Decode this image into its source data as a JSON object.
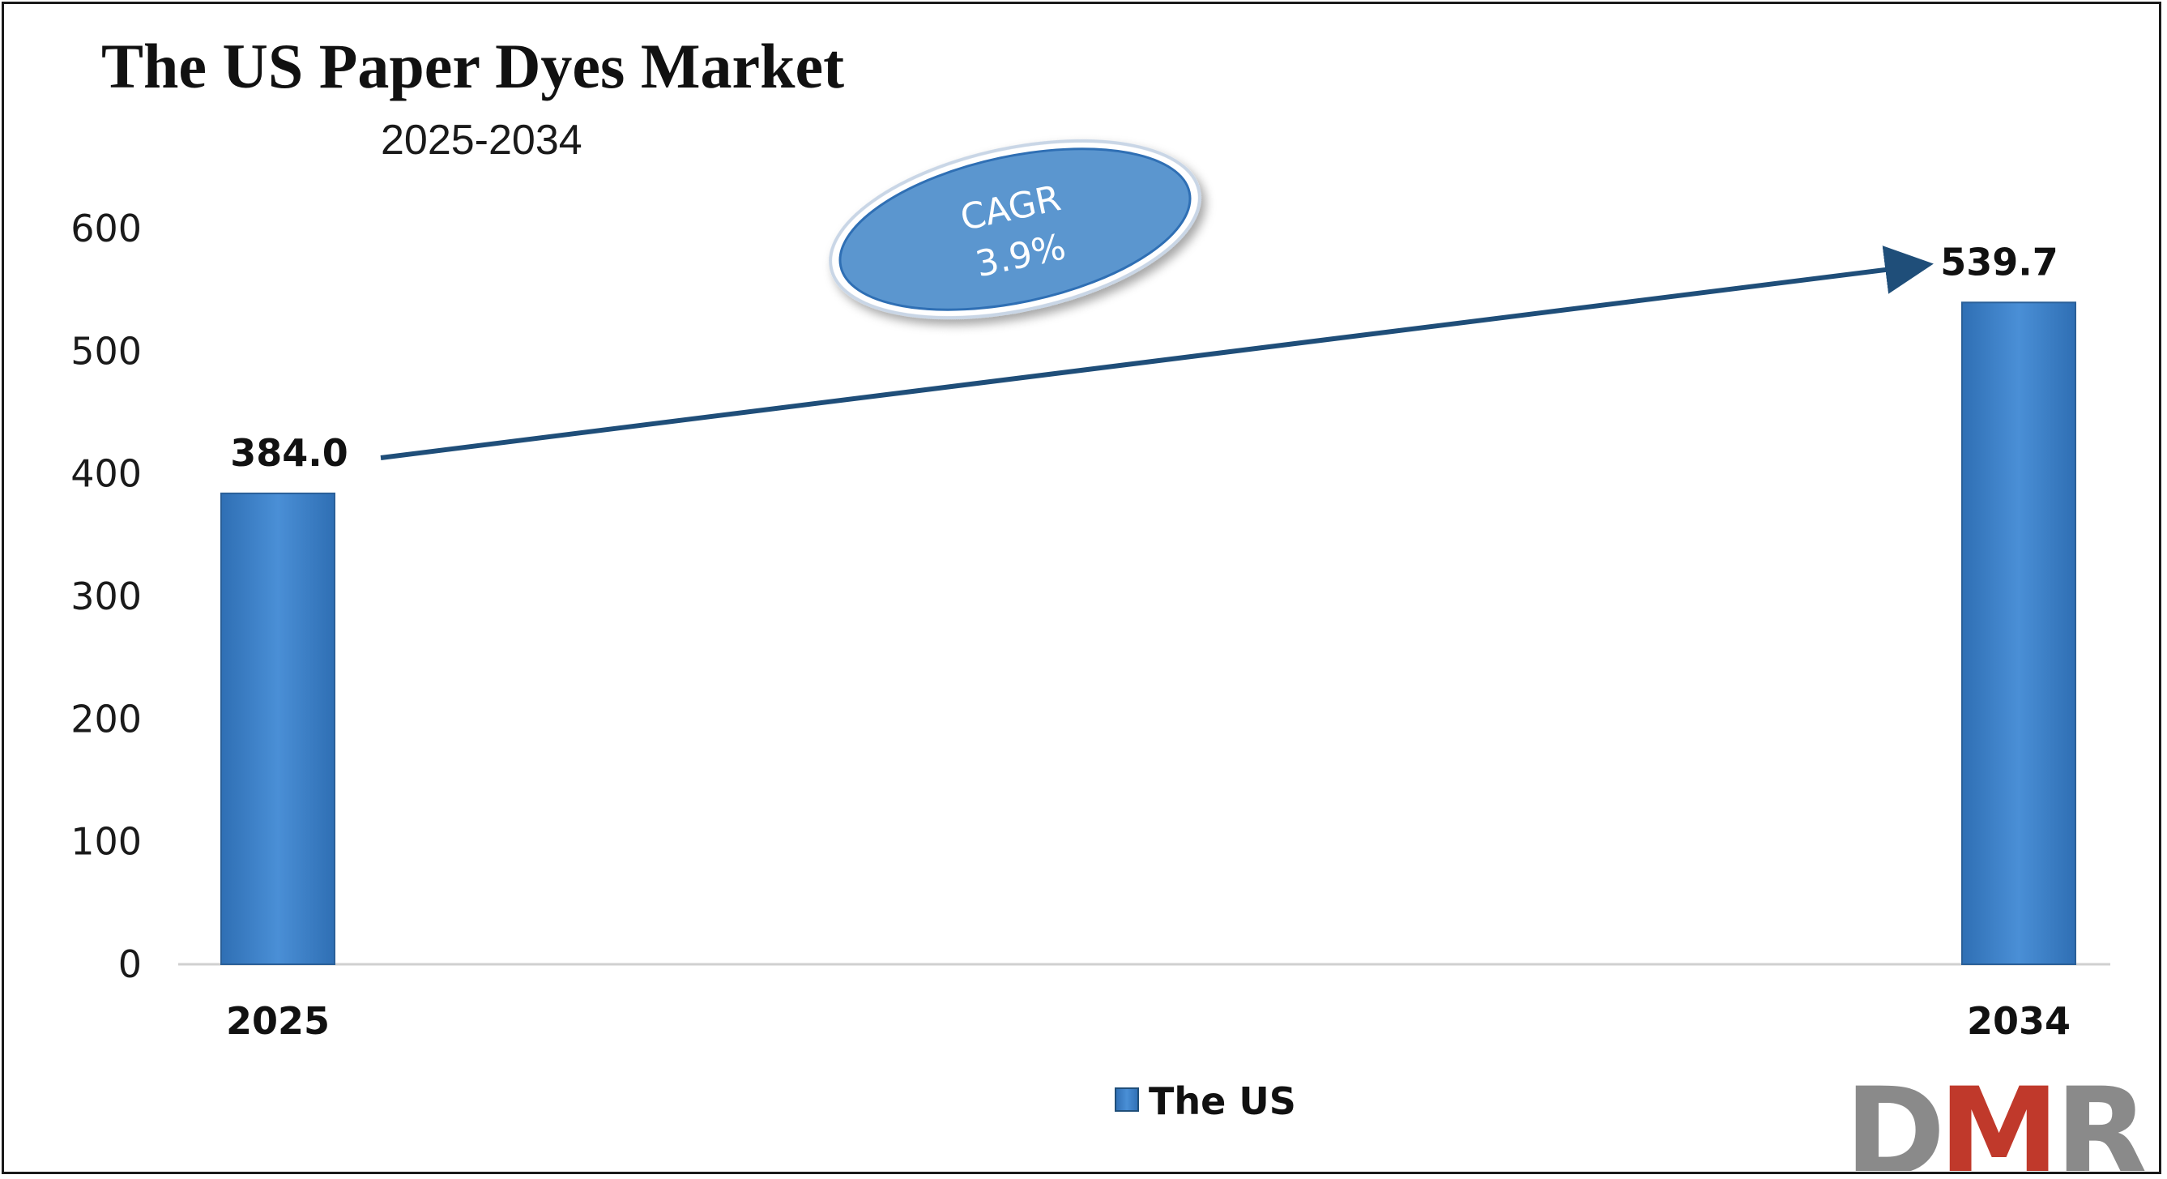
{
  "chart_data": {
    "type": "bar",
    "title": "The US Paper Dyes Market",
    "subtitle": "2025-2034",
    "categories": [
      "2025",
      "2034"
    ],
    "series": [
      {
        "name": "The US",
        "values": [
          384.0,
          539.7
        ],
        "color": "#3a7fc7"
      }
    ],
    "data_labels": [
      "384.0",
      "539.7"
    ],
    "ylim": [
      0,
      600
    ],
    "yticks": [
      0,
      100,
      200,
      300,
      400,
      500,
      600
    ],
    "grid": false,
    "legend": "bottom-center",
    "annotation": {
      "line1": "CAGR",
      "line2": "3.9%"
    }
  },
  "colors": {
    "bar": "#3a7fc7",
    "arrow": "#1f4e79",
    "ellipse_fill": "#5b96cf",
    "logo_red": "#c0392b",
    "logo_gray": "#8a8a8a"
  },
  "logo": {
    "part1": "D",
    "part2": "M",
    "part3": "R"
  }
}
